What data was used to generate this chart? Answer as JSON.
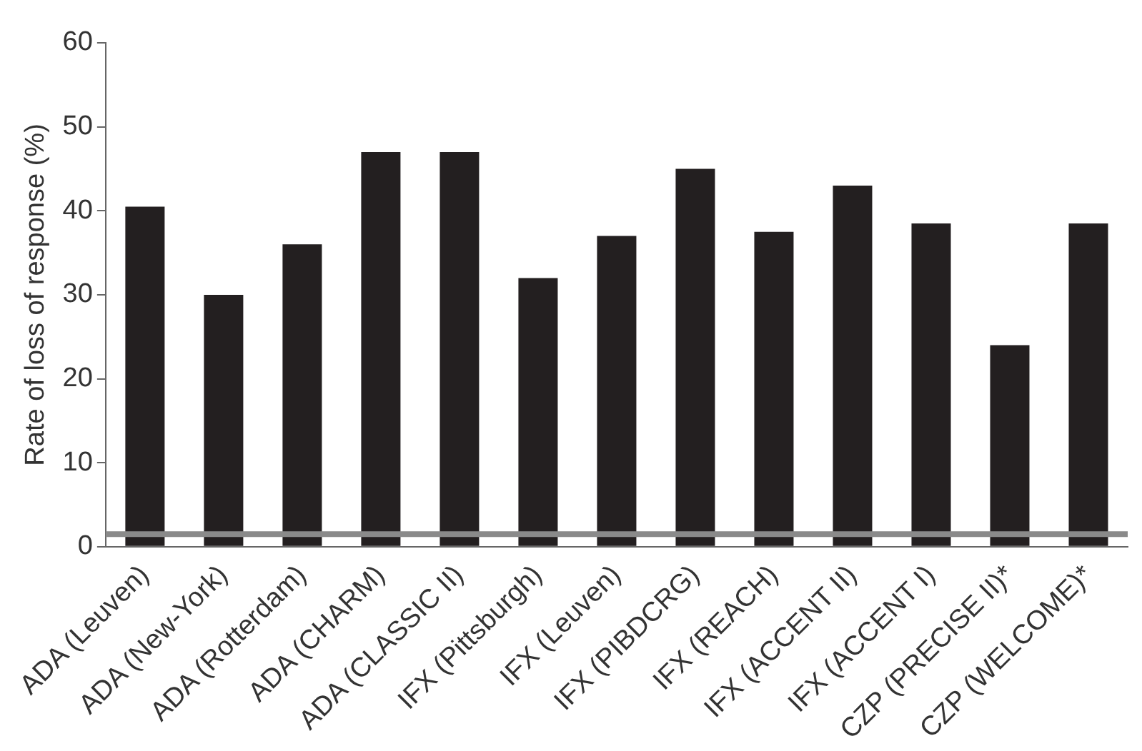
{
  "chart_data": {
    "type": "bar",
    "ylabel": "Rate of loss of response (%)",
    "categories": [
      "ADA (Leuven)",
      "ADA (New-York)",
      "ADA (Rotterdam)",
      "ADA (CHARM)",
      "ADA (CLASSIC II)",
      "IFX (Pittsburgh)",
      "IFX (Leuven)",
      "IFX (PIBDCRG)",
      "IFX (REACH)",
      "IFX (ACCENT II)",
      "IFX (ACCENT I)",
      "CZP (PRECISE II)*",
      "CZP (WELCOME)*"
    ],
    "values": [
      40.5,
      30,
      36,
      47,
      47,
      32,
      37,
      45,
      37.5,
      43,
      38.5,
      24,
      38.5
    ],
    "color": "#231f20",
    "ylim": [
      0,
      60
    ],
    "yticks": [
      0,
      10,
      20,
      30,
      40,
      50,
      60
    ],
    "grid": false,
    "legend": false,
    "ref_lines": [
      {
        "axis": "y",
        "value": 1.5,
        "color": "#8a8a8a"
      }
    ]
  }
}
